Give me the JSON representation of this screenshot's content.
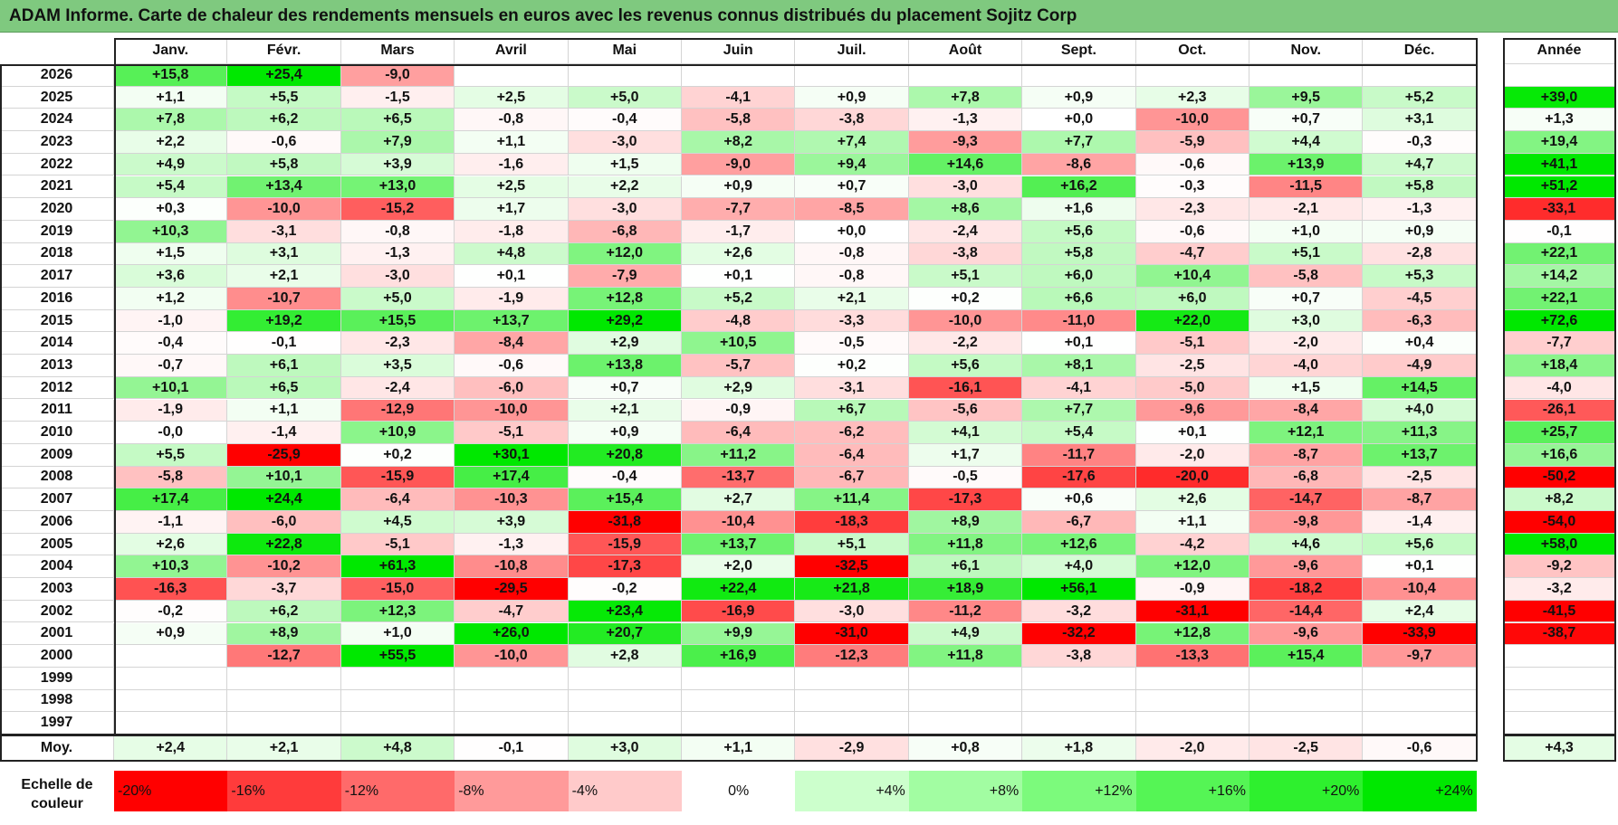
{
  "title": "ADAM Informe. Carte de chaleur des rendements mensuels en euros avec les revenus connus distribués du placement Sojitz Corp",
  "chart_data": {
    "type": "heatmap",
    "title": "ADAM Informe. Carte de chaleur des rendements mensuels en euros avec les revenus connus distribués du placement Sojitz Corp",
    "months": [
      "Janv.",
      "Févr.",
      "Mars",
      "Avril",
      "Mai",
      "Juin",
      "Juil.",
      "Août",
      "Sept.",
      "Oct.",
      "Nov.",
      "Déc."
    ],
    "year_header": "Année",
    "rows": [
      {
        "year": "2026",
        "values": [
          "+15,8",
          "+25,4",
          "-9,0",
          "",
          "",
          "",
          "",
          "",
          "",
          "",
          "",
          ""
        ],
        "annual": ""
      },
      {
        "year": "2025",
        "values": [
          "+1,1",
          "+5,5",
          "-1,5",
          "+2,5",
          "+5,0",
          "-4,1",
          "+0,9",
          "+7,8",
          "+0,9",
          "+2,3",
          "+9,5",
          "+5,2"
        ],
        "annual": "+39,0"
      },
      {
        "year": "2024",
        "values": [
          "+7,8",
          "+6,2",
          "+6,5",
          "-0,8",
          "-0,4",
          "-5,8",
          "-3,8",
          "-1,3",
          "+0,0",
          "-10,0",
          "+0,7",
          "+3,1"
        ],
        "annual": "+1,3"
      },
      {
        "year": "2023",
        "values": [
          "+2,2",
          "-0,6",
          "+7,9",
          "+1,1",
          "-3,0",
          "+8,2",
          "+7,4",
          "-9,3",
          "+7,7",
          "-5,9",
          "+4,4",
          "-0,3"
        ],
        "annual": "+19,4"
      },
      {
        "year": "2022",
        "values": [
          "+4,9",
          "+5,8",
          "+3,9",
          "-1,6",
          "+1,5",
          "-9,0",
          "+9,4",
          "+14,6",
          "-8,6",
          "-0,6",
          "+13,9",
          "+4,7"
        ],
        "annual": "+41,1"
      },
      {
        "year": "2021",
        "values": [
          "+5,4",
          "+13,4",
          "+13,0",
          "+2,5",
          "+2,2",
          "+0,9",
          "+0,7",
          "-3,0",
          "+16,2",
          "-0,3",
          "-11,5",
          "+5,8"
        ],
        "annual": "+51,2"
      },
      {
        "year": "2020",
        "values": [
          "+0,3",
          "-10,0",
          "-15,2",
          "+1,7",
          "-3,0",
          "-7,7",
          "-8,5",
          "+8,6",
          "+1,6",
          "-2,3",
          "-2,1",
          "-1,3"
        ],
        "annual": "-33,1"
      },
      {
        "year": "2019",
        "values": [
          "+10,3",
          "-3,1",
          "-0,8",
          "-1,8",
          "-6,8",
          "-1,7",
          "+0,0",
          "-2,4",
          "+5,6",
          "-0,6",
          "+1,0",
          "+0,9"
        ],
        "annual": "-0,1"
      },
      {
        "year": "2018",
        "values": [
          "+1,5",
          "+3,1",
          "-1,3",
          "+4,8",
          "+12,0",
          "+2,6",
          "-0,8",
          "-3,8",
          "+5,8",
          "-4,7",
          "+5,1",
          "-2,8"
        ],
        "annual": "+22,1"
      },
      {
        "year": "2017",
        "values": [
          "+3,6",
          "+2,1",
          "-3,0",
          "+0,1",
          "-7,9",
          "+0,1",
          "-0,8",
          "+5,1",
          "+6,0",
          "+10,4",
          "-5,8",
          "+5,3"
        ],
        "annual": "+14,2"
      },
      {
        "year": "2016",
        "values": [
          "+1,2",
          "-10,7",
          "+5,0",
          "-1,9",
          "+12,8",
          "+5,2",
          "+2,1",
          "+0,2",
          "+6,6",
          "+6,0",
          "+0,7",
          "-4,5"
        ],
        "annual": "+22,1"
      },
      {
        "year": "2015",
        "values": [
          "-1,0",
          "+19,2",
          "+15,5",
          "+13,7",
          "+29,2",
          "-4,8",
          "-3,3",
          "-10,0",
          "-11,0",
          "+22,0",
          "+3,0",
          "-6,3"
        ],
        "annual": "+72,6"
      },
      {
        "year": "2014",
        "values": [
          "-0,4",
          "-0,1",
          "-2,3",
          "-8,4",
          "+2,9",
          "+10,5",
          "-0,5",
          "-2,2",
          "+0,1",
          "-5,1",
          "-2,0",
          "+0,4"
        ],
        "annual": "-7,7"
      },
      {
        "year": "2013",
        "values": [
          "-0,7",
          "+6,1",
          "+3,5",
          "-0,6",
          "+13,8",
          "-5,7",
          "+0,2",
          "+5,6",
          "+8,1",
          "-2,5",
          "-4,0",
          "-4,9"
        ],
        "annual": "+18,4"
      },
      {
        "year": "2012",
        "values": [
          "+10,1",
          "+6,5",
          "-2,4",
          "-6,0",
          "+0,7",
          "+2,9",
          "-3,1",
          "-16,1",
          "-4,1",
          "-5,0",
          "+1,5",
          "+14,5"
        ],
        "annual": "-4,0"
      },
      {
        "year": "2011",
        "values": [
          "-1,9",
          "+1,1",
          "-12,9",
          "-10,0",
          "+2,1",
          "-0,9",
          "+6,7",
          "-5,6",
          "+7,7",
          "-9,6",
          "-8,4",
          "+4,0"
        ],
        "annual": "-26,1"
      },
      {
        "year": "2010",
        "values": [
          "-0,0",
          "-1,4",
          "+10,9",
          "-5,1",
          "+0,9",
          "-6,4",
          "-6,2",
          "+4,1",
          "+5,4",
          "+0,1",
          "+12,1",
          "+11,3"
        ],
        "annual": "+25,7"
      },
      {
        "year": "2009",
        "values": [
          "+5,5",
          "-25,9",
          "+0,2",
          "+30,1",
          "+20,8",
          "+11,2",
          "-6,4",
          "+1,7",
          "-11,7",
          "-2,0",
          "-8,7",
          "+13,7"
        ],
        "annual": "+16,6"
      },
      {
        "year": "2008",
        "values": [
          "-5,8",
          "+10,1",
          "-15,9",
          "+17,4",
          "-0,4",
          "-13,7",
          "-6,7",
          "-0,5",
          "-17,6",
          "-20,0",
          "-6,8",
          "-2,5"
        ],
        "annual": "-50,2"
      },
      {
        "year": "2007",
        "values": [
          "+17,4",
          "+24,4",
          "-6,4",
          "-10,3",
          "+15,4",
          "+2,7",
          "+11,4",
          "-17,3",
          "+0,6",
          "+2,6",
          "-14,7",
          "-8,7"
        ],
        "annual": "+8,2"
      },
      {
        "year": "2006",
        "values": [
          "-1,1",
          "-6,0",
          "+4,5",
          "+3,9",
          "-31,8",
          "-10,4",
          "-18,3",
          "+8,9",
          "-6,7",
          "+1,1",
          "-9,8",
          "-1,4"
        ],
        "annual": "-54,0"
      },
      {
        "year": "2005",
        "values": [
          "+2,6",
          "+22,8",
          "-5,1",
          "-1,3",
          "-15,9",
          "+13,7",
          "+5,1",
          "+11,8",
          "+12,6",
          "-4,2",
          "+4,6",
          "+5,6"
        ],
        "annual": "+58,0"
      },
      {
        "year": "2004",
        "values": [
          "+10,3",
          "-10,2",
          "+61,3",
          "-10,8",
          "-17,3",
          "+2,0",
          "-32,5",
          "+6,1",
          "+4,0",
          "+12,0",
          "-9,6",
          "+0,1"
        ],
        "annual": "-9,2"
      },
      {
        "year": "2003",
        "values": [
          "-16,3",
          "-3,7",
          "-15,0",
          "-29,5",
          "-0,2",
          "+22,4",
          "+21,8",
          "+18,9",
          "+56,1",
          "-0,9",
          "-18,2",
          "-10,4"
        ],
        "annual": "-3,2"
      },
      {
        "year": "2002",
        "values": [
          "-0,2",
          "+6,2",
          "+12,3",
          "-4,7",
          "+23,4",
          "-16,9",
          "-3,0",
          "-11,2",
          "-3,2",
          "-31,1",
          "-14,4",
          "+2,4"
        ],
        "annual": "-41,5"
      },
      {
        "year": "2001",
        "values": [
          "+0,9",
          "+8,9",
          "+1,0",
          "+26,0",
          "+20,7",
          "+9,9",
          "-31,0",
          "+4,9",
          "-32,2",
          "+12,8",
          "-9,6",
          "-33,9"
        ],
        "annual": "-38,7"
      },
      {
        "year": "2000",
        "values": [
          "",
          "-12,7",
          "+55,5",
          "-10,0",
          "+2,8",
          "+16,9",
          "-12,3",
          "+11,8",
          "-3,8",
          "-13,3",
          "+15,4",
          "-9,7"
        ],
        "annual": ""
      },
      {
        "year": "1999",
        "values": [
          "",
          "",
          "",
          "",
          "",
          "",
          "",
          "",
          "",
          "",
          "",
          ""
        ],
        "annual": ""
      },
      {
        "year": "1998",
        "values": [
          "",
          "",
          "",
          "",
          "",
          "",
          "",
          "",
          "",
          "",
          "",
          ""
        ],
        "annual": ""
      },
      {
        "year": "1997",
        "values": [
          "",
          "",
          "",
          "",
          "",
          "",
          "",
          "",
          "",
          "",
          "",
          ""
        ],
        "annual": ""
      }
    ],
    "average": {
      "label": "Moy.",
      "values": [
        "+2,4",
        "+2,1",
        "+4,8",
        "-0,1",
        "+3,0",
        "+1,1",
        "-2,9",
        "+0,8",
        "+1,8",
        "-2,0",
        "-2,5",
        "-0,6"
      ],
      "annual": "+4,3"
    },
    "scale": {
      "label_line1": "Echelle de",
      "label_line2": "couleur",
      "steps": [
        {
          "label": "-20%",
          "color": "#ff0000",
          "align": "left"
        },
        {
          "label": "-16%",
          "color": "#ff3b3b",
          "align": "left"
        },
        {
          "label": "-12%",
          "color": "#ff6a6a",
          "align": "left"
        },
        {
          "label": "-8%",
          "color": "#ff9a9a",
          "align": "left"
        },
        {
          "label": "-4%",
          "color": "#ffcaca",
          "align": "left"
        },
        {
          "label": "0%",
          "color": "#ffffff",
          "align": "center"
        },
        {
          "label": "+4%",
          "color": "#ccffcc",
          "align": "right"
        },
        {
          "label": "+8%",
          "color": "#a2fda2",
          "align": "right"
        },
        {
          "label": "+12%",
          "color": "#7cfa7c",
          "align": "right"
        },
        {
          "label": "+16%",
          "color": "#55f555",
          "align": "right"
        },
        {
          "label": "+20%",
          "color": "#2ef02e",
          "align": "right"
        },
        {
          "label": "+24%",
          "color": "#00e800",
          "align": "right"
        }
      ]
    }
  }
}
